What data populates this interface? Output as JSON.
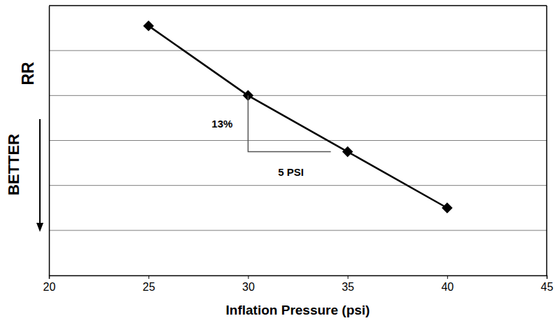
{
  "chart_data": {
    "type": "line",
    "xlabel": "Inflation Pressure (psi)",
    "ylabel": "RR",
    "annotations": [
      "13%",
      "5 PSI",
      "BETTER"
    ],
    "x": [
      25,
      30,
      35,
      40
    ],
    "values": [
      5.55,
      4.0,
      2.75,
      1.5
    ],
    "color": "#000000",
    "marker": "diamond",
    "line_style": "solid",
    "xlim": [
      20,
      45
    ],
    "xticks": [
      20,
      25,
      30,
      35,
      40,
      45
    ],
    "ylim": [
      0,
      6
    ],
    "yticks": [
      1,
      2,
      3,
      4,
      5
    ],
    "grid": true,
    "tick_labels": "x"
  }
}
